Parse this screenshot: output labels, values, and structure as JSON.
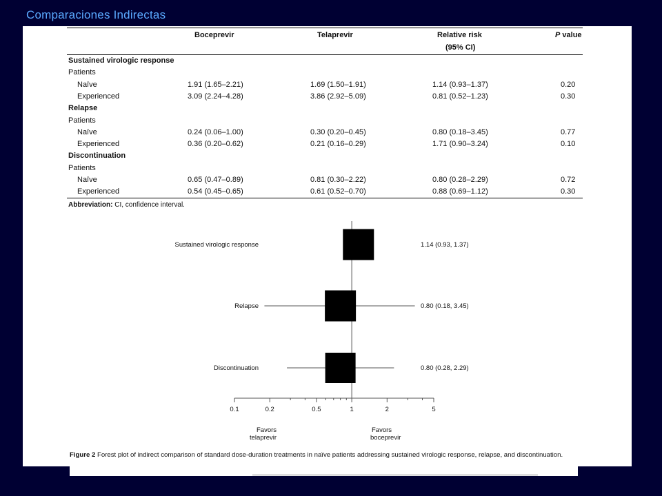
{
  "slide": {
    "title": "Comparaciones Indirectas"
  },
  "table": {
    "headers": {
      "boceprevir": "Boceprevir",
      "telaprevir": "Telaprevir",
      "rr_line1": "Relative risk",
      "rr_line2": "(95% CI)",
      "p_italic": "P",
      "p_rest": " value"
    },
    "sections": [
      {
        "title": "Sustained virologic response",
        "subgroup": "Patients",
        "rows": [
          {
            "label": "Naïve",
            "boceprevir": "1.91 (1.65–2.21)",
            "telaprevir": "1.69 (1.50–1.91)",
            "rr": "1.14 (0.93–1.37)",
            "p": "0.20"
          },
          {
            "label": "Experienced",
            "boceprevir": "3.09 (2.24–4.28)",
            "telaprevir": "3.86 (2.92–5.09)",
            "rr": "0.81 (0.52–1.23)",
            "p": "0.30"
          }
        ]
      },
      {
        "title": "Relapse",
        "subgroup": "Patients",
        "rows": [
          {
            "label": "Naïve",
            "boceprevir": "0.24 (0.06–1.00)",
            "telaprevir": "0.30 (0.20–0.45)",
            "rr": "0.80 (0.18–3.45)",
            "p": "0.77"
          },
          {
            "label": "Experienced",
            "boceprevir": "0.36 (0.20–0.62)",
            "telaprevir": "0.21 (0.16–0.29)",
            "rr": "1.71 (0.90–3.24)",
            "p": "0.10"
          }
        ]
      },
      {
        "title": "Discontinuation",
        "subgroup": "Patients",
        "rows": [
          {
            "label": "Naïve",
            "boceprevir": "0.65 (0.47–0.89)",
            "telaprevir": "0.81 (0.30–2.22)",
            "rr": "0.80 (0.28–2.29)",
            "p": "0.72"
          },
          {
            "label": "Experienced",
            "boceprevir": "0.54 (0.45–0.65)",
            "telaprevir": "0.61 (0.52–0.70)",
            "rr": "0.88 (0.69–1.12)",
            "p": "0.30"
          }
        ]
      }
    ],
    "abbreviation_label": "Abbreviation:",
    "abbreviation_text": " CI, confidence interval."
  },
  "chart_data": {
    "type": "scatter",
    "scale": "log",
    "xlim": [
      0.1,
      5
    ],
    "xticks": [
      0.1,
      0.2,
      0.5,
      1,
      2,
      5
    ],
    "xtick_labels": [
      "0.1",
      "0.2",
      "0.5",
      "1",
      "2",
      "5"
    ],
    "minor_ticks": [
      0.3,
      0.4,
      0.6,
      0.7,
      0.8,
      0.9,
      3,
      4
    ],
    "reference_line": 1,
    "points": [
      {
        "label": "Sustained virologic response",
        "estimate": 1.14,
        "lower": 0.93,
        "upper": 1.37,
        "text": "1.14 (0.93, 1.37)"
      },
      {
        "label": "Relapse",
        "estimate": 0.8,
        "lower": 0.18,
        "upper": 3.45,
        "text": "0.80 (0.18, 3.45)"
      },
      {
        "label": "Discontinuation",
        "estimate": 0.8,
        "lower": 0.28,
        "upper": 2.29,
        "text": "0.80 (0.28, 2.29)"
      }
    ],
    "favors_left": [
      "Favors",
      "telaprevir"
    ],
    "favors_right": [
      "Favors",
      "boceprevir"
    ]
  },
  "caption": {
    "label": "Figure 2",
    "text": " Forest plot of indirect comparison of standard dose-duration treatments in naïve patients addressing sustained virologic response, relapse, and discontinuation."
  }
}
